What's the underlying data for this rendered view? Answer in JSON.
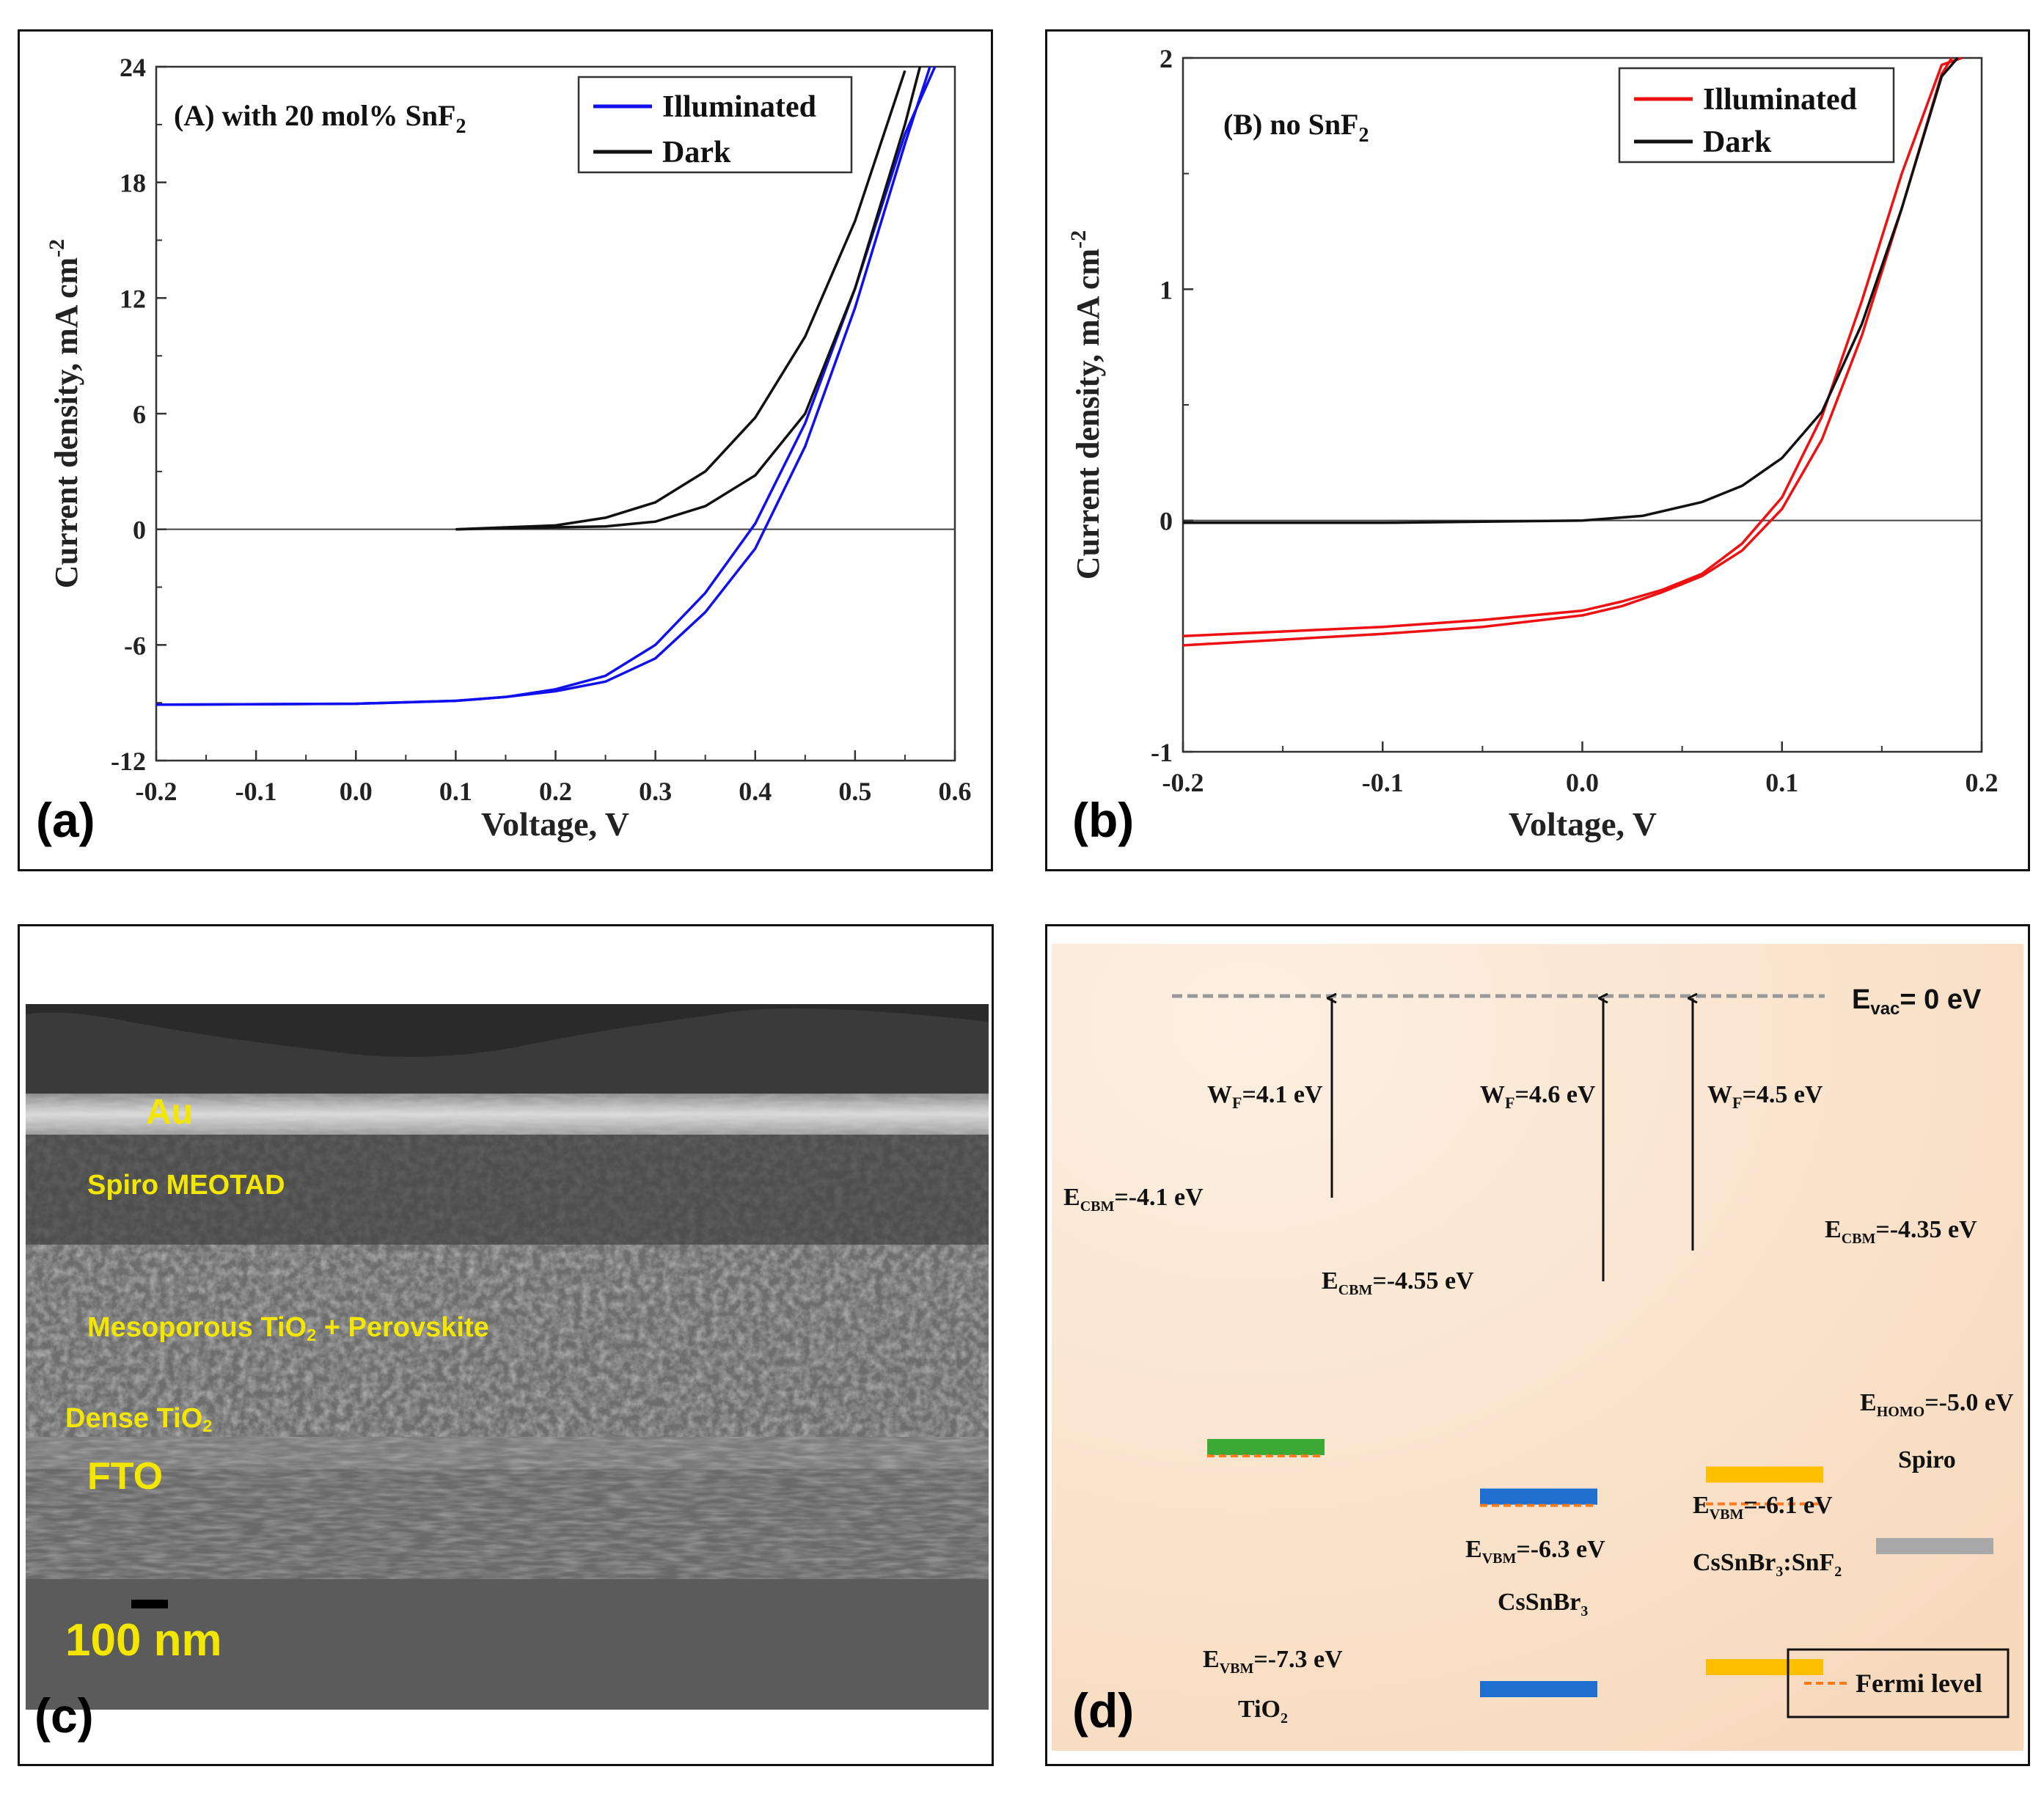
{
  "panel_a": {
    "letter": "(a)",
    "annotation": "(A) with 20 mol% SnF",
    "annotation_sub": "2",
    "chart_data": {
      "type": "line",
      "title": "(A) with 20 mol% SnF2",
      "xlabel": "Voltage, V",
      "ylabel": "Current density, mA cm",
      "ylabel_sup": "-2",
      "xlim": [
        -0.2,
        0.6
      ],
      "ylim": [
        -12,
        24
      ],
      "xticks": [
        "-0.2",
        "-0.1",
        "0.0",
        "0.1",
        "0.2",
        "0.3",
        "0.4",
        "0.5",
        "0.6"
      ],
      "yticks": [
        "-12",
        "-6",
        "0",
        "6",
        "12",
        "18",
        "24"
      ],
      "legend_position": "top-right",
      "series": [
        {
          "name": "Illuminated",
          "color": "#1010ee",
          "sweeps": [
            {
              "x": [
                -0.2,
                0.0,
                0.1,
                0.15,
                0.2,
                0.25,
                0.3,
                0.35,
                0.4,
                0.45,
                0.5,
                0.55,
                0.58
              ],
              "y": [
                -9.1,
                -9.05,
                -8.9,
                -8.7,
                -8.3,
                -7.6,
                -6.0,
                -3.3,
                0.3,
                5.5,
                12.5,
                20.5,
                24.0
              ]
            },
            {
              "x": [
                -0.2,
                0.0,
                0.1,
                0.15,
                0.2,
                0.25,
                0.3,
                0.35,
                0.4,
                0.45,
                0.5,
                0.55,
                0.575
              ],
              "y": [
                -9.1,
                -9.05,
                -8.9,
                -8.7,
                -8.4,
                -7.9,
                -6.7,
                -4.3,
                -1.0,
                4.3,
                11.5,
                20.0,
                24.0
              ]
            }
          ]
        },
        {
          "name": "Dark",
          "color": "#111111",
          "sweeps": [
            {
              "x": [
                0.1,
                0.2,
                0.25,
                0.3,
                0.35,
                0.4,
                0.45,
                0.5,
                0.55
              ],
              "y": [
                0.0,
                0.2,
                0.6,
                1.4,
                3.0,
                5.8,
                10.0,
                16.0,
                23.8
              ]
            },
            {
              "x": [
                0.1,
                0.2,
                0.25,
                0.3,
                0.35,
                0.4,
                0.45,
                0.5,
                0.55,
                0.565
              ],
              "y": [
                0.0,
                0.1,
                0.15,
                0.4,
                1.2,
                2.8,
                6.0,
                12.5,
                21.0,
                24.0
              ]
            }
          ]
        }
      ]
    }
  },
  "panel_b": {
    "letter": "(b)",
    "annotation": "(B) no SnF",
    "annotation_sub": "2",
    "chart_data": {
      "type": "line",
      "title": "(B) no SnF2",
      "xlabel": "Voltage, V",
      "ylabel": "Current density, mA cm",
      "ylabel_sup": "-2",
      "xlim": [
        -0.2,
        0.2
      ],
      "ylim": [
        -1,
        2
      ],
      "xticks": [
        "-0.2",
        "-0.1",
        "0.0",
        "0.1",
        "0.2"
      ],
      "yticks": [
        "-1",
        "0",
        "1",
        "2"
      ],
      "legend_position": "top-right",
      "series": [
        {
          "name": "Illuminated",
          "color": "#ee1111",
          "sweeps": [
            {
              "x": [
                -0.2,
                -0.1,
                -0.05,
                0.0,
                0.02,
                0.04,
                0.06,
                0.08,
                0.1,
                0.12,
                0.14,
                0.16,
                0.18,
                0.185
              ],
              "y": [
                -0.54,
                -0.49,
                -0.46,
                -0.41,
                -0.37,
                -0.31,
                -0.24,
                -0.13,
                0.05,
                0.35,
                0.8,
                1.35,
                1.93,
                2.0
              ]
            },
            {
              "x": [
                -0.2,
                -0.1,
                -0.05,
                0.0,
                0.02,
                0.04,
                0.06,
                0.08,
                0.1,
                0.12,
                0.14,
                0.16,
                0.18,
                0.19
              ],
              "y": [
                -0.5,
                -0.46,
                -0.43,
                -0.39,
                -0.35,
                -0.3,
                -0.23,
                -0.1,
                0.1,
                0.45,
                0.95,
                1.5,
                1.97,
                2.0
              ]
            }
          ]
        },
        {
          "name": "Dark",
          "color": "#111111",
          "sweeps": [
            {
              "x": [
                -0.2,
                -0.1,
                0.0,
                0.03,
                0.06,
                0.08,
                0.1,
                0.12,
                0.14,
                0.16,
                0.18,
                0.188
              ],
              "y": [
                -0.01,
                -0.01,
                0.0,
                0.02,
                0.08,
                0.15,
                0.27,
                0.47,
                0.85,
                1.35,
                1.92,
                2.0
              ]
            }
          ]
        }
      ]
    }
  },
  "panel_c": {
    "letter": "(c)",
    "layers": [
      {
        "id": "au",
        "text": "Au"
      },
      {
        "id": "spiro",
        "text": "Spiro MEOTAD"
      },
      {
        "id": "meso",
        "text_a": "Mesoporous TiO",
        "sub": "2",
        "text_b": " + Perovskite"
      },
      {
        "id": "dense",
        "text_a": "Dense TiO",
        "sub": "2",
        "text_b": ""
      },
      {
        "id": "fto",
        "text": "FTO"
      }
    ],
    "scale_bar": "100 nm"
  },
  "panel_d": {
    "letter": "(d)",
    "vacuum": {
      "main": "E",
      "sub": "vac",
      "value": "= 0 eV"
    },
    "levels": [
      {
        "id": "tio2-cbm",
        "kind": "CBM",
        "energy": -4.1,
        "color": "#3aaa35",
        "label_main": "E",
        "label_sub": "CBM",
        "label_val": "=-4.1 eV"
      },
      {
        "id": "tio2-vbm",
        "kind": "VBM",
        "energy": -7.3,
        "color": "#3aaa35",
        "label_main": "E",
        "label_sub": "VBM",
        "label_val": "=-7.3 eV"
      },
      {
        "id": "cssnbr3-cbm",
        "kind": "CBM",
        "energy": -4.55,
        "color": "#1e6fd0",
        "label_main": "E",
        "label_sub": "CBM",
        "label_val": "=-4.55 eV"
      },
      {
        "id": "cssnbr3-vbm",
        "kind": "VBM",
        "energy": -6.3,
        "color": "#1e6fd0",
        "label_main": "E",
        "label_sub": "VBM",
        "label_val": "=-6.3 eV"
      },
      {
        "id": "snf2-cbm",
        "kind": "CBM",
        "energy": -4.35,
        "color": "#ffbf00",
        "label_main": "E",
        "label_sub": "CBM",
        "label_val": "=-4.35 eV"
      },
      {
        "id": "snf2-vbm",
        "kind": "VBM",
        "energy": -6.1,
        "color": "#ffbf00",
        "label_main": "E",
        "label_sub": "VBM",
        "label_val": "=-6.1 eV"
      },
      {
        "id": "spiro-homo",
        "kind": "HOMO",
        "energy": -5.0,
        "color": "#a8a8a8",
        "label_main": "E",
        "label_sub": "HOMO",
        "label_val": "=-5.0 eV"
      }
    ],
    "work_functions": [
      {
        "id": "wf-tio2",
        "main": "W",
        "sub": "F",
        "value": "=4.1 eV"
      },
      {
        "id": "wf-cssnbr3",
        "main": "W",
        "sub": "F",
        "value": "=4.6 eV"
      },
      {
        "id": "wf-snf2",
        "main": "W",
        "sub": "F",
        "value": "=4.5 eV"
      }
    ],
    "materials": [
      {
        "id": "mat-tio2",
        "main": "TiO",
        "sub": "2",
        "tail": ""
      },
      {
        "id": "mat-cssnbr3",
        "main": "CsSnBr",
        "sub": "3",
        "tail": ""
      },
      {
        "id": "mat-snf2",
        "main": "CsSnBr",
        "sub": "3",
        "tail": ":SnF",
        "sub2": "2"
      },
      {
        "id": "mat-spiro",
        "main": "Spiro",
        "sub": "",
        "tail": ""
      }
    ],
    "legend": "Fermi level",
    "fermi_color": "#ff7a1a",
    "background_color": "#f9dec4"
  }
}
